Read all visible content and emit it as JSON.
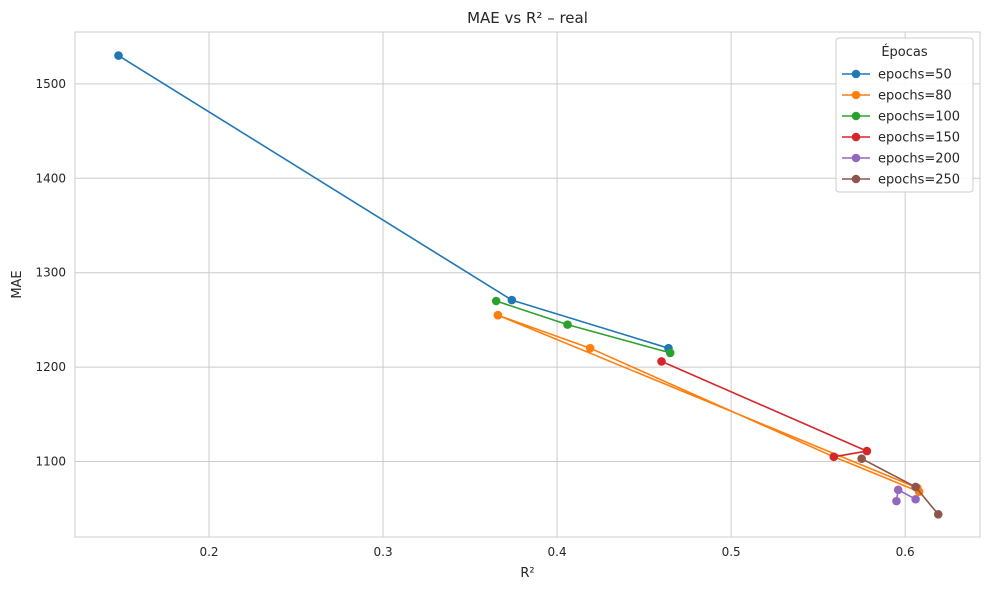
{
  "chart_data": {
    "type": "line",
    "title": "MAE vs R² – real",
    "xlabel": "R²",
    "ylabel": "MAE",
    "xlim": [
      0.123,
      0.643
    ],
    "ylim": [
      1020,
      1555
    ],
    "xticks": [
      0.2,
      0.3,
      0.4,
      0.5,
      0.6
    ],
    "yticks": [
      1100,
      1200,
      1300,
      1400,
      1500
    ],
    "grid": true,
    "legend": {
      "title": "Épocas",
      "position": "top-right"
    },
    "series": [
      {
        "name": "epochs=50",
        "color": "#1f77b4",
        "points": [
          [
            0.148,
            1530
          ],
          [
            0.374,
            1271
          ],
          [
            0.464,
            1220
          ]
        ]
      },
      {
        "name": "epochs=80",
        "color": "#ff7f0e",
        "points": [
          [
            0.366,
            1255
          ],
          [
            0.419,
            1220
          ],
          [
            0.559,
            1105
          ],
          [
            0.608,
            1068
          ],
          [
            0.607,
            1072
          ],
          [
            0.366,
            1255
          ]
        ]
      },
      {
        "name": "epochs=100",
        "color": "#2ca02c",
        "points": [
          [
            0.365,
            1270
          ],
          [
            0.406,
            1245
          ],
          [
            0.465,
            1215
          ]
        ]
      },
      {
        "name": "epochs=150",
        "color": "#d62728",
        "points": [
          [
            0.46,
            1206
          ],
          [
            0.578,
            1111
          ],
          [
            0.559,
            1105
          ]
        ]
      },
      {
        "name": "epochs=200",
        "color": "#9467bd",
        "points": [
          [
            0.595,
            1058
          ],
          [
            0.596,
            1070
          ],
          [
            0.606,
            1060
          ]
        ]
      },
      {
        "name": "epochs=250",
        "color": "#8c564b",
        "points": [
          [
            0.575,
            1103
          ],
          [
            0.606,
            1073
          ],
          [
            0.619,
            1044
          ]
        ]
      }
    ]
  }
}
